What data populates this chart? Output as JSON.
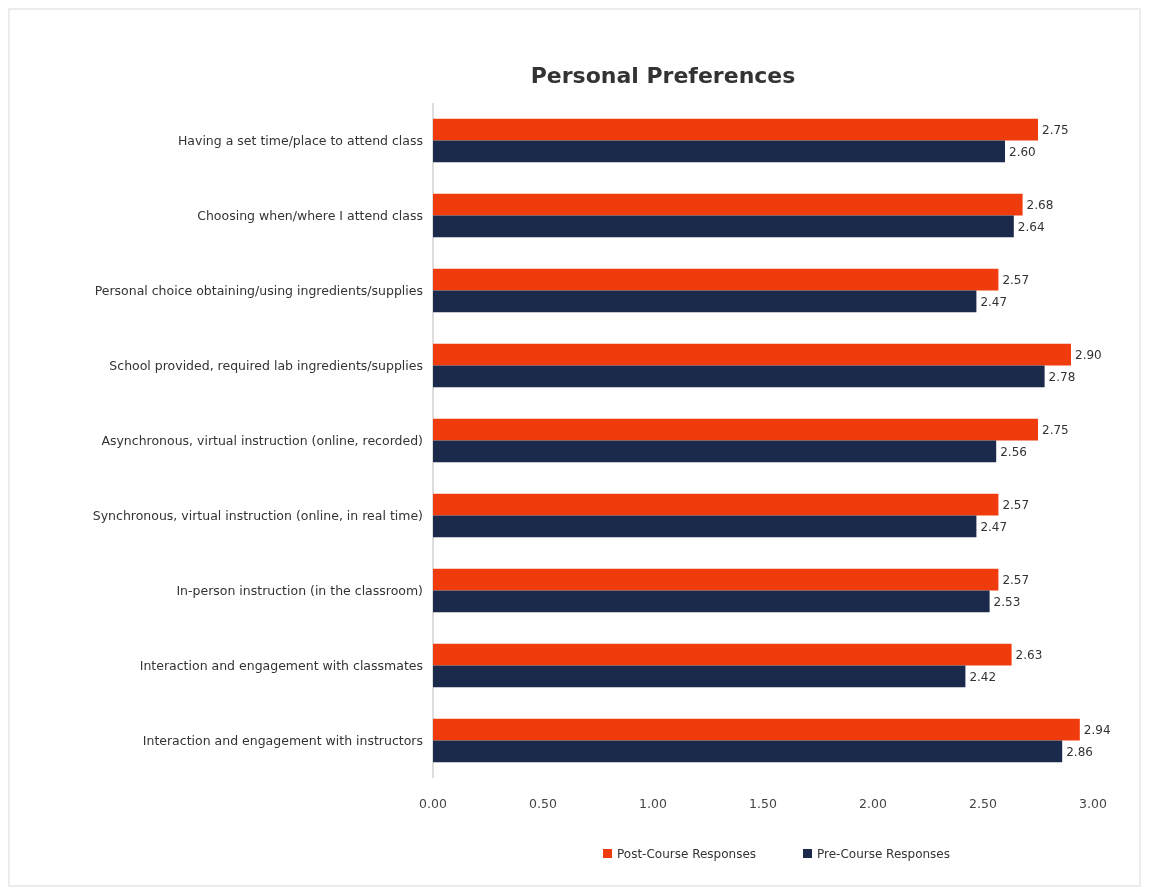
{
  "chart_data": {
    "type": "bar",
    "title": "Personal Preferences",
    "orientation": "horizontal",
    "categories": [
      "Having a set time/place to attend class",
      "Choosing when/where I attend class",
      "Personal choice obtaining/using ingredients/supplies",
      "School provided, required lab ingredients/supplies",
      "Asynchronous, virtual instruction (online, recorded)",
      "Synchronous, virtual instruction (online, in real time)",
      "In-person instruction (in the classroom)",
      "Interaction and engagement with classmates",
      "Interaction and engagement with instructors"
    ],
    "series": [
      {
        "name": "Post-Course Responses",
        "color": "#f03c0c",
        "values": [
          2.75,
          2.68,
          2.57,
          2.9,
          2.75,
          2.57,
          2.57,
          2.63,
          2.94
        ],
        "value_labels": [
          "2.75",
          "2.68",
          "2.57",
          "2.90",
          "2.75",
          "2.57",
          "2.57",
          "2.63",
          "2.94"
        ]
      },
      {
        "name": "Pre-Course Responses",
        "color": "#1b2a4a",
        "values": [
          2.6,
          2.64,
          2.47,
          2.78,
          2.56,
          2.47,
          2.53,
          2.42,
          2.86
        ],
        "value_labels": [
          "2.60",
          "2.64",
          "2.47",
          "2.78",
          "2.56",
          "2.47",
          "2.53",
          "2.42",
          "2.86"
        ]
      }
    ],
    "xlim": [
      0,
      3
    ],
    "xticks": [
      {
        "value": 0,
        "label": "0.00"
      },
      {
        "value": 0.5,
        "label": "0.50"
      },
      {
        "value": 1,
        "label": "1.00"
      },
      {
        "value": 1.5,
        "label": "1.50"
      },
      {
        "value": 2,
        "label": "2.00"
      },
      {
        "value": 2.5,
        "label": "2.50"
      },
      {
        "value": 3,
        "label": "3.00"
      }
    ],
    "grid": false,
    "legend": "bottom"
  }
}
